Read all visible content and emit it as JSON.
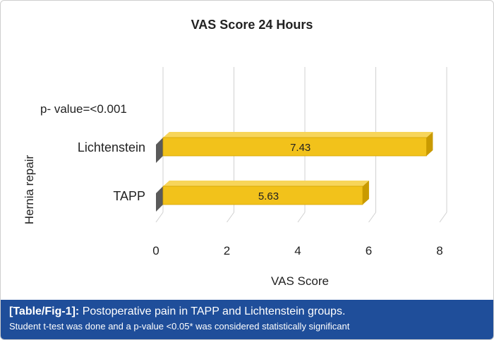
{
  "chart_data": {
    "type": "bar",
    "orientation": "horizontal",
    "style": "3d",
    "title": "VAS Score 24 Hours",
    "xlabel": "VAS Score",
    "ylabel": "Hernia repair",
    "categories": [
      "TAPP",
      "Lichtenstein"
    ],
    "values": [
      5.63,
      7.43
    ],
    "data_labels": [
      "5.63",
      "7.43"
    ],
    "xlim": [
      0,
      8
    ],
    "xticks": [
      "0",
      "2",
      "4",
      "6",
      "8"
    ],
    "annotation": "p- value=<0.001",
    "grid": true,
    "bar_color": "#f2c21b"
  },
  "caption": {
    "label": "[Table/Fig-1]:",
    "title": "Postoperative pain in TAPP and Lichtenstein groups.",
    "note": "Student t-test was done and a p-value <0.05* was considered statistically significant"
  }
}
